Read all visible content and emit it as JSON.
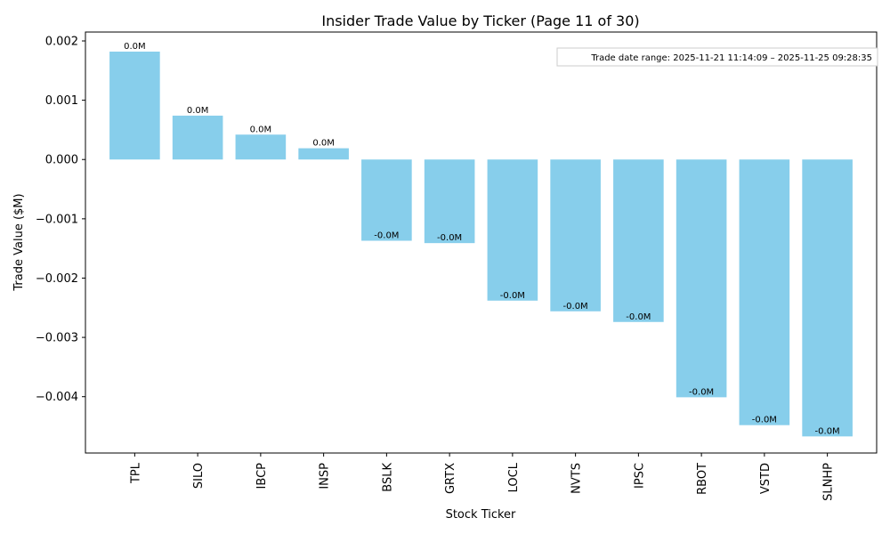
{
  "chart_data": {
    "type": "bar",
    "title": "Insider Trade Value by Ticker (Page 11 of 30)",
    "xlabel": "Stock Ticker",
    "ylabel": "Trade Value ($M)",
    "ylim": [
      -0.00495,
      0.00215
    ],
    "yticks": [
      0.002,
      0.001,
      0.0,
      -0.001,
      -0.002,
      -0.003,
      -0.004
    ],
    "ytick_labels": [
      "0.002",
      "0.001",
      "0.000",
      "−0.001",
      "−0.002",
      "−0.003",
      "−0.004"
    ],
    "categories": [
      "TPL",
      "SILO",
      "IBCP",
      "INSP",
      "BSLK",
      "GRTX",
      "LOCL",
      "NVTS",
      "IPSC",
      "RBOT",
      "VSTD",
      "SLNHP"
    ],
    "values": [
      0.00182,
      0.00074,
      0.00042,
      0.00019,
      -0.00137,
      -0.00141,
      -0.00238,
      -0.00256,
      -0.00274,
      -0.00401,
      -0.00448,
      -0.00467
    ],
    "data_labels": [
      "0.0M",
      "0.0M",
      "0.0M",
      "0.0M",
      "-0.0M",
      "-0.0M",
      "-0.0M",
      "-0.0M",
      "-0.0M",
      "-0.0M",
      "-0.0M",
      "-0.0M"
    ],
    "bar_color": "#87ceeb",
    "annotation": "Trade date range: 2025-11-21 11:14:09 – 2025-11-25 09:28:35",
    "grid": false,
    "legend": "none"
  }
}
